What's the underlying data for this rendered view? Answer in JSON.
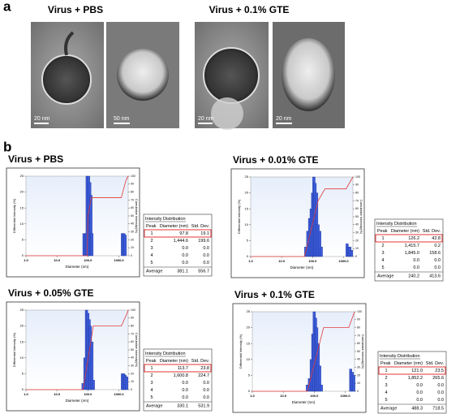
{
  "panel_a": {
    "label": "a",
    "titles": [
      "Virus + PBS",
      "Virus + 0.1% GTE"
    ],
    "scale_bars": [
      "20 nm",
      "50 nm",
      "20 nm",
      "20 nm"
    ]
  },
  "panel_b": {
    "label": "b"
  },
  "chart_data": [
    {
      "type": "bar",
      "title": "Virus + PBS",
      "xlabel": "Diameter (nm)",
      "ylabel": "Differential Intensity (%)",
      "y2label": "Cumulative Intensity(%)",
      "log_x": true,
      "xlim": [
        1,
        2000
      ],
      "ylim": [
        0,
        25
      ],
      "y2lim": [
        0,
        100
      ],
      "xticks": [
        {
          "value": 1,
          "label": "1.0"
        },
        {
          "value": 10,
          "label": "10.0"
        },
        {
          "value": 100,
          "label": "100.0"
        },
        {
          "value": 1000,
          "label": "1000.0"
        }
      ],
      "yticks": [
        0,
        5,
        10,
        15,
        20,
        25
      ],
      "y2ticks": [
        0,
        10,
        20,
        30,
        40,
        50,
        60,
        70,
        80,
        90,
        100
      ],
      "series": [
        {
          "type": "bar",
          "color": "#3a5ad8",
          "x": [
            75,
            85,
            95,
            105,
            115,
            125,
            135,
            1300,
            1450,
            1600
          ],
          "values": [
            7,
            7,
            25,
            25,
            23,
            19,
            7,
            7,
            7,
            6.5
          ]
        },
        {
          "type": "line",
          "axis": "y2",
          "color": "#e03a3a",
          "x": [
            1,
            95,
            100,
            130,
            1200,
            1700,
            2000
          ],
          "values": [
            0,
            0,
            50,
            73,
            73,
            95,
            100
          ]
        }
      ],
      "table": {
        "title": "Intensity Distribution",
        "columns": [
          "Peak",
          "Diameter (nm)",
          "Std. Dev."
        ],
        "rows": [
          [
            "1",
            "97.8",
            "19.1"
          ],
          [
            "2",
            "1,444.6",
            "199.6"
          ],
          [
            "3",
            "0.0",
            "0.0"
          ],
          [
            "4",
            "0.0",
            "0.0"
          ],
          [
            "5",
            "0.0",
            "0.0"
          ]
        ],
        "footer": [
          "Average",
          "381.1",
          "556.7"
        ]
      }
    },
    {
      "type": "bar",
      "title": "Virus + 0.01% GTE",
      "xlabel": "Diameter (nm)",
      "ylabel": "Differential Intensity (%)",
      "y2label": "Cumulative Intensity(%)",
      "log_x": true,
      "xlim": [
        1,
        2000
      ],
      "ylim": [
        0,
        25
      ],
      "y2lim": [
        0,
        100
      ],
      "xticks": [
        {
          "value": 1,
          "label": "1.0"
        },
        {
          "value": 10,
          "label": "10.0"
        },
        {
          "value": 100,
          "label": "100.0"
        },
        {
          "value": 1000,
          "label": "1000.0"
        }
      ],
      "yticks": [
        0,
        5,
        10,
        15,
        20,
        25
      ],
      "y2ticks": [
        0,
        10,
        20,
        30,
        40,
        50,
        60,
        70,
        80,
        90,
        100
      ],
      "series": [
        {
          "type": "bar",
          "color": "#3a5ad8",
          "x": [
            60,
            70,
            80,
            90,
            100,
            110,
            120,
            135,
            150,
            170,
            190,
            1300,
            1450,
            1600,
            1800
          ],
          "values": [
            3,
            8,
            12,
            15,
            20,
            25,
            23,
            20,
            10,
            8,
            3,
            4,
            3,
            3,
            2
          ]
        },
        {
          "type": "line",
          "axis": "y2",
          "color": "#e03a3a",
          "x": [
            1,
            55,
            150,
            250,
            1200,
            2000
          ],
          "values": [
            0,
            0,
            70,
            85,
            85,
            100
          ]
        }
      ],
      "table": {
        "title": "Intensity Distribution",
        "columns": [
          "Peak",
          "Diameter (nm)",
          "Std. Dev."
        ],
        "rows": [
          [
            "1",
            "126.2",
            "42.8"
          ],
          [
            "2",
            "1,415.7",
            "0.2"
          ],
          [
            "3",
            "1,845.0",
            "158.6"
          ],
          [
            "4",
            "0.0",
            "0.0"
          ],
          [
            "5",
            "0.0",
            "0.0"
          ]
        ],
        "footer": [
          "Average",
          "240.2",
          "413.6"
        ]
      }
    },
    {
      "type": "bar",
      "title": "Virus + 0.05% GTE",
      "xlabel": "Diameter (nm)",
      "ylabel": "Differential Intensity (%)",
      "y2label": "Cumulative Intensity(%)",
      "log_x": true,
      "xlim": [
        1,
        2000
      ],
      "ylim": [
        0,
        25
      ],
      "y2lim": [
        0,
        100
      ],
      "xticks": [
        {
          "value": 1,
          "label": "1.0"
        },
        {
          "value": 10,
          "label": "10.0"
        },
        {
          "value": 100,
          "label": "100.0"
        },
        {
          "value": 1000,
          "label": "1000.0"
        }
      ],
      "yticks": [
        0,
        5,
        10,
        15,
        20,
        25
      ],
      "y2ticks": [
        0,
        10,
        20,
        30,
        40,
        50,
        60,
        70,
        80,
        90,
        100
      ],
      "series": [
        {
          "type": "bar",
          "color": "#3a5ad8",
          "x": [
            70,
            80,
            90,
            100,
            110,
            120,
            135,
            150,
            1300,
            1450,
            1600,
            1800
          ],
          "values": [
            2,
            10,
            25,
            24,
            22,
            20,
            15,
            3,
            5,
            5,
            4.5,
            4
          ]
        },
        {
          "type": "line",
          "axis": "y2",
          "color": "#e03a3a",
          "x": [
            1,
            70,
            150,
            1200,
            1800,
            2000
          ],
          "values": [
            0,
            0,
            80,
            80,
            95,
            100
          ]
        }
      ],
      "table": {
        "title": "Intensity Distribution",
        "columns": [
          "Peak",
          "Diameter (nm)",
          "Std. Dev."
        ],
        "rows": [
          [
            "1",
            "113.7",
            "23.8"
          ],
          [
            "2",
            "1,600.8",
            "224.7"
          ],
          [
            "3",
            "0.0",
            "0.0"
          ],
          [
            "4",
            "0.0",
            "0.0"
          ],
          [
            "5",
            "0.0",
            "0.0"
          ]
        ],
        "footer": [
          "Average",
          "330.1",
          "531.9"
        ]
      }
    },
    {
      "type": "bar",
      "title": "Virus + 0.1% GTE",
      "xlabel": "Diameter (nm)",
      "ylabel": "Differential Intensity (%)",
      "y2label": "Cumulative Intensity(%)",
      "log_x": true,
      "xlim": [
        1,
        2000
      ],
      "ylim": [
        0,
        25
      ],
      "y2lim": [
        0,
        100
      ],
      "xticks": [
        {
          "value": 1,
          "label": "1.0"
        },
        {
          "value": 10,
          "label": "10.0"
        },
        {
          "value": 100,
          "label": "100.0"
        },
        {
          "value": 1000,
          "label": "1000.0"
        }
      ],
      "yticks": [
        0,
        5,
        10,
        15,
        20,
        25
      ],
      "y2ticks": [
        0,
        10,
        20,
        30,
        40,
        50,
        60,
        70,
        80,
        90,
        100
      ],
      "series": [
        {
          "type": "bar",
          "color": "#3a5ad8",
          "x": [
            60,
            70,
            80,
            90,
            100,
            110,
            120,
            135,
            150,
            170,
            1500,
            1700,
            1900
          ],
          "values": [
            2,
            4,
            10,
            18,
            25,
            23,
            20,
            15,
            8,
            2,
            7,
            6,
            5
          ]
        },
        {
          "type": "line",
          "axis": "y2",
          "color": "#e03a3a",
          "x": [
            1,
            60,
            200,
            1300,
            1800,
            2000
          ],
          "values": [
            0,
            0,
            80,
            80,
            95,
            100
          ]
        }
      ],
      "table": {
        "title": "Intensity Distribution",
        "columns": [
          "Peak",
          "Diameter (nm)",
          "Std. Dev."
        ],
        "rows": [
          [
            "1",
            "121.0",
            "23.5"
          ],
          [
            "2",
            "1,852.2",
            "265.6"
          ],
          [
            "3",
            "0.0",
            "0.0"
          ],
          [
            "4",
            "0.0",
            "0.0"
          ],
          [
            "5",
            "0.0",
            "0.0"
          ]
        ],
        "footer": [
          "Average",
          "488.3",
          "718.5"
        ]
      }
    }
  ]
}
